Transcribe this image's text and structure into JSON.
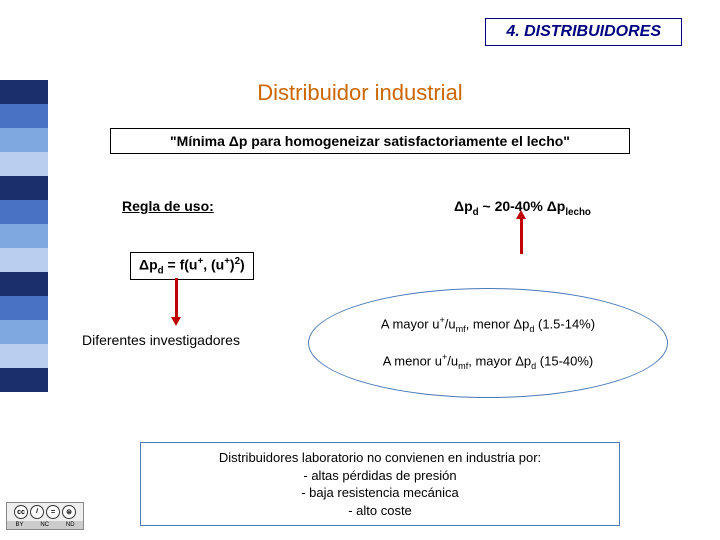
{
  "sidebar": {
    "colors": [
      "#1a2f6b",
      "#4a72c4",
      "#7fa8e0",
      "#b8cfef",
      "#1a2f6b",
      "#4a72c4",
      "#7fa8e0",
      "#b8cfef",
      "#1a2f6b",
      "#4a72c4",
      "#7fa8e0",
      "#b8cfef",
      "#1a2f6b"
    ]
  },
  "header": {
    "text": "4. DISTRIBUIDORES"
  },
  "title": "Distribuidor industrial",
  "quote": "\"Mínima Δp para homogeneizar satisfactoriamente el lecho\"",
  "rule": {
    "label": "Regla de uso:",
    "formula_prefix": "Δp",
    "formula_sub_d": "d",
    "formula_mid": " ~ 20-40% Δp",
    "formula_sub_lecho": "lecho"
  },
  "func": {
    "prefix": "Δp",
    "sub": "d",
    "mid": " = f(u",
    "sup1": "+",
    "mid2": ", (u",
    "sup2": "+",
    "mid3": ")",
    "sup3": "2",
    "end": ")"
  },
  "investigators": "Diferentes investigadores",
  "bubble": {
    "line1_a": "A mayor u",
    "line1_b": "/u",
    "line1_c": ", menor Δp",
    "line1_d": " (1.5-14%)",
    "line2_a": "A menor u",
    "line2_b": "/u",
    "line2_c": ", mayor Δp",
    "line2_d": " (15-40%)",
    "sup_plus": "+",
    "sub_mf": "mf",
    "sub_d": "d"
  },
  "bottom": {
    "l1": "Distribuidores laboratorio no convienen en industria por:",
    "l2": "- altas pérdidas de presión",
    "l3": "- baja resistencia mecánica",
    "l4": "- alto coste"
  },
  "cc": {
    "by": "BY",
    "nc": "NC",
    "nd": "ND",
    "cc_sym": "cc",
    "by_sym": "𝑖",
    "nc_sym": "=",
    "nd_sym": "⊜"
  }
}
